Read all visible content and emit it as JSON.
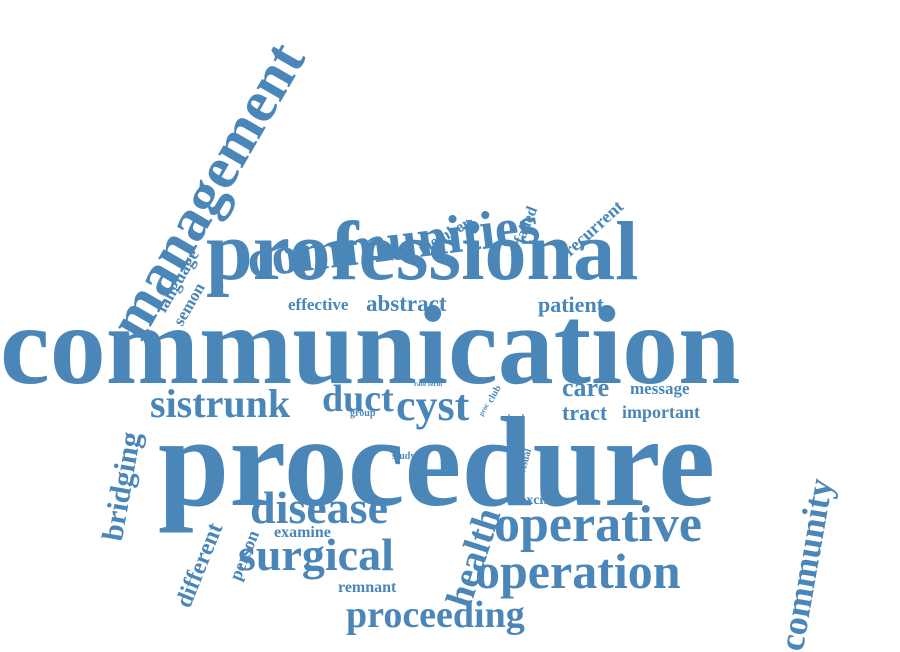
{
  "colors": {
    "word": "#4a86b8",
    "background": "#ffffff"
  },
  "words": {
    "communication": "communication",
    "procedure": "procedure",
    "professional": "professional",
    "management": "management",
    "communities": "communities",
    "operative": "operative",
    "operation": "operation",
    "disease": "disease",
    "surgical": "surgical",
    "community": "community",
    "sistrunk": "sistrunk",
    "duct": "duct",
    "cyst": "cyst",
    "proceeding": "proceeding",
    "health": "health",
    "bridging": "bridging",
    "different": "different",
    "abstract": "abstract",
    "patient": "patient",
    "effective": "effective",
    "care": "care",
    "message": "message",
    "tract": "tract",
    "important": "important",
    "language": "language",
    "semon": "semon",
    "member": "member",
    "failed": "failed",
    "recurrent": "recurrent",
    "person": "person",
    "examine": "examine",
    "remnant": "remnant",
    "excision": "excision",
    "study": "study",
    "group": "group",
    "rate_term": "rate term",
    "club": "club",
    "proc": "proc",
    "local": "local",
    "visual": "visual"
  }
}
